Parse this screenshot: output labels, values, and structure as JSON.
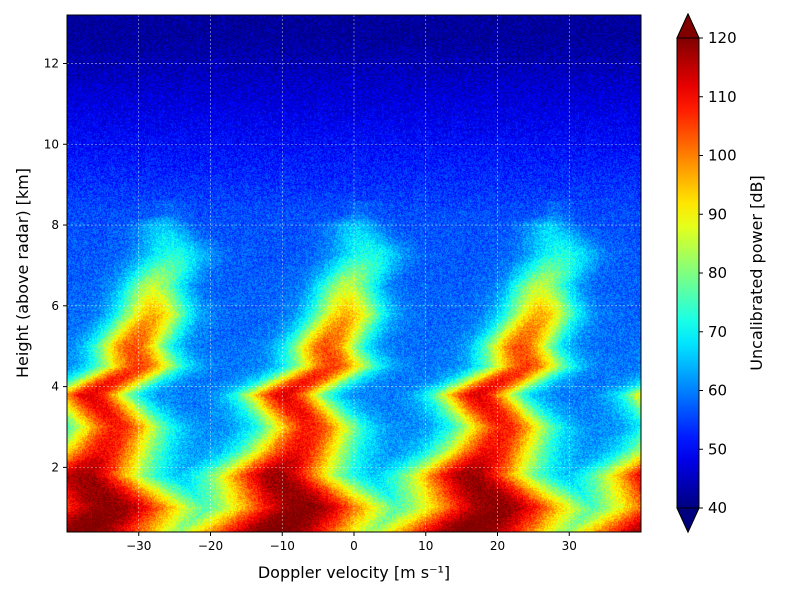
{
  "chart_data": {
    "type": "heatmap",
    "title": "",
    "xlabel": "Doppler velocity [m s⁻¹]",
    "ylabel": "Height (above radar) [km]",
    "xlim": [
      -40,
      40
    ],
    "ylim": [
      0.4,
      13.2
    ],
    "x_ticks": [
      -30,
      -20,
      -10,
      0,
      10,
      20,
      30
    ],
    "x_tick_labels": [
      "−30",
      "−20",
      "−10",
      "0",
      "10",
      "20",
      "30"
    ],
    "y_ticks": [
      2,
      4,
      6,
      8,
      10,
      12
    ],
    "y_tick_labels": [
      "2",
      "4",
      "6",
      "8",
      "10",
      "12"
    ],
    "grid": true,
    "colormap": "jet",
    "colorbar": {
      "label": "Uncalibrated power [dB]",
      "range": [
        40,
        120
      ],
      "ticks": [
        40,
        50,
        60,
        70,
        80,
        90,
        100,
        110,
        120
      ],
      "tick_labels": [
        "40",
        "50",
        "60",
        "70",
        "80",
        "90",
        "100",
        "110",
        "120"
      ],
      "extend": "both"
    },
    "aliasing_period_ms": 27,
    "signal_profile": [
      {
        "height_km": 0.4,
        "center_velocity": -38,
        "peak_db": 122,
        "width": 9
      },
      {
        "height_km": 1.0,
        "center_velocity": -34,
        "peak_db": 120,
        "width": 8
      },
      {
        "height_km": 1.8,
        "center_velocity": -38,
        "peak_db": 118,
        "width": 6
      },
      {
        "height_km": 2.4,
        "center_velocity": -35,
        "peak_db": 110,
        "width": 5
      },
      {
        "height_km": 3.0,
        "center_velocity": -33,
        "peak_db": 108,
        "width": 4.5
      },
      {
        "height_km": 3.8,
        "center_velocity": -37,
        "peak_db": 112,
        "width": 4
      },
      {
        "height_km": 4.5,
        "center_velocity": -30,
        "peak_db": 105,
        "width": 4
      },
      {
        "height_km": 5.0,
        "center_velocity": -31,
        "peak_db": 104,
        "width": 3.5
      },
      {
        "height_km": 5.8,
        "center_velocity": -28,
        "peak_db": 96,
        "width": 3.5
      },
      {
        "height_km": 6.5,
        "center_velocity": -28,
        "peak_db": 85,
        "width": 3
      },
      {
        "height_km": 7.3,
        "center_velocity": -25,
        "peak_db": 72,
        "width": 3.5
      },
      {
        "height_km": 8.0,
        "center_velocity": -27,
        "peak_db": 66,
        "width": 2.5
      },
      {
        "height_km": 8.3,
        "center_velocity": -26,
        "peak_db": 58,
        "width": 1.5
      }
    ]
  }
}
